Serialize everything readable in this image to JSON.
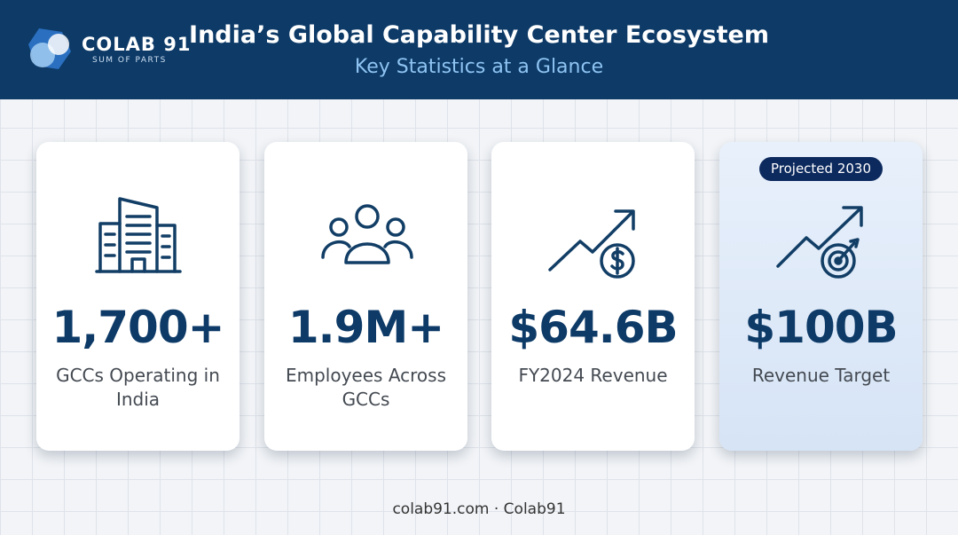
{
  "header": {
    "logo_name": "COLAB 91",
    "logo_tagline": "SUM OF PARTS",
    "title": "India’s Global Capability Center Ecosystem",
    "subtitle": "Key Statistics at a Glance"
  },
  "cards": [
    {
      "value": "1,700+",
      "label": "GCCs Operating in India"
    },
    {
      "value": "1.9M+",
      "label": "Employees Across GCCs"
    },
    {
      "value": "$64.6B",
      "label": "FY2024 Revenue"
    },
    {
      "badge": "Projected 2030",
      "value": "$100B",
      "label": "Revenue Target"
    }
  ],
  "footer": "colab91.com · Colab91"
}
